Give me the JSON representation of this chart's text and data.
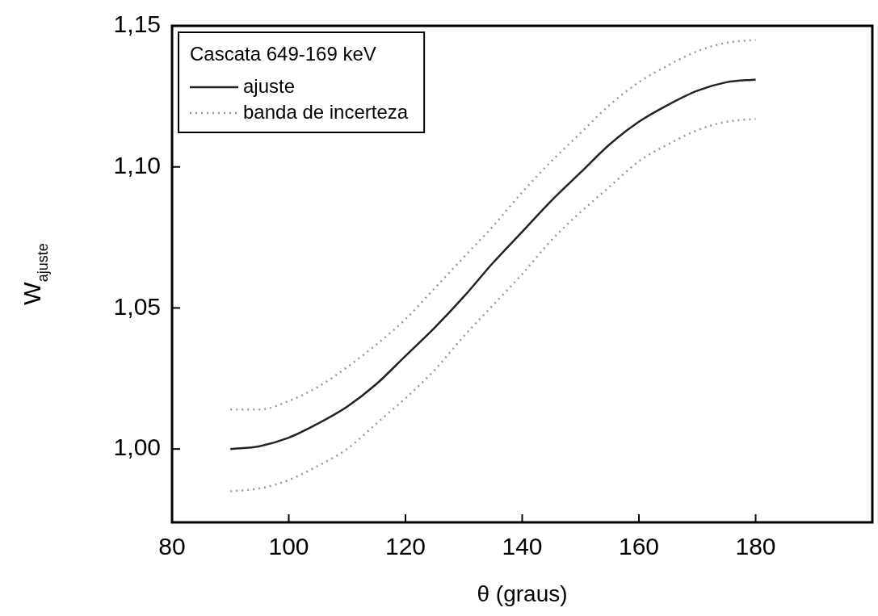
{
  "chart_data": {
    "type": "line",
    "xlabel": "θ (graus)",
    "ylabel": "W$_{ajuste}$",
    "legend_title": "Cascata 649-169 keV",
    "legend": "top left",
    "grid": false,
    "marker": "none",
    "xlim": [
      80,
      200
    ],
    "xticks": [
      80,
      100,
      120,
      140,
      160,
      180
    ],
    "ylim": [
      0.974,
      1.15
    ],
    "yticks": [
      {
        "value": 1.0,
        "label": "1,00"
      },
      {
        "value": 1.05,
        "label": "1,05"
      },
      {
        "value": 1.1,
        "label": "1,10"
      },
      {
        "value": 1.15,
        "label": "1,15"
      }
    ],
    "x": [
      90,
      95,
      100,
      105,
      110,
      115,
      120,
      125,
      130,
      135,
      140,
      145,
      150,
      155,
      160,
      165,
      170,
      175,
      180
    ],
    "series": [
      {
        "name": "ajuste",
        "color": "#222222",
        "line_style": "solid",
        "values": [
          1.0,
          1.001,
          1.004,
          1.009,
          1.015,
          1.023,
          1.033,
          1.043,
          1.054,
          1.066,
          1.077,
          1.088,
          1.098,
          1.108,
          1.116,
          1.122,
          1.127,
          1.13,
          1.131
        ]
      },
      {
        "name": "banda de incerteza",
        "color": "#9a9a9a",
        "line_style": "dotted",
        "values": [
          1.014,
          1.014,
          1.017,
          1.022,
          1.029,
          1.037,
          1.046,
          1.057,
          1.068,
          1.079,
          1.091,
          1.102,
          1.112,
          1.122,
          1.13,
          1.136,
          1.141,
          1.144,
          1.145
        ]
      },
      {
        "color": "#9a9a9a",
        "line_style": "dotted",
        "values": [
          0.985,
          0.986,
          0.989,
          0.994,
          1.0,
          1.009,
          1.018,
          1.028,
          1.04,
          1.051,
          1.062,
          1.074,
          1.084,
          1.093,
          1.102,
          1.108,
          1.113,
          1.116,
          1.117
        ]
      }
    ]
  }
}
